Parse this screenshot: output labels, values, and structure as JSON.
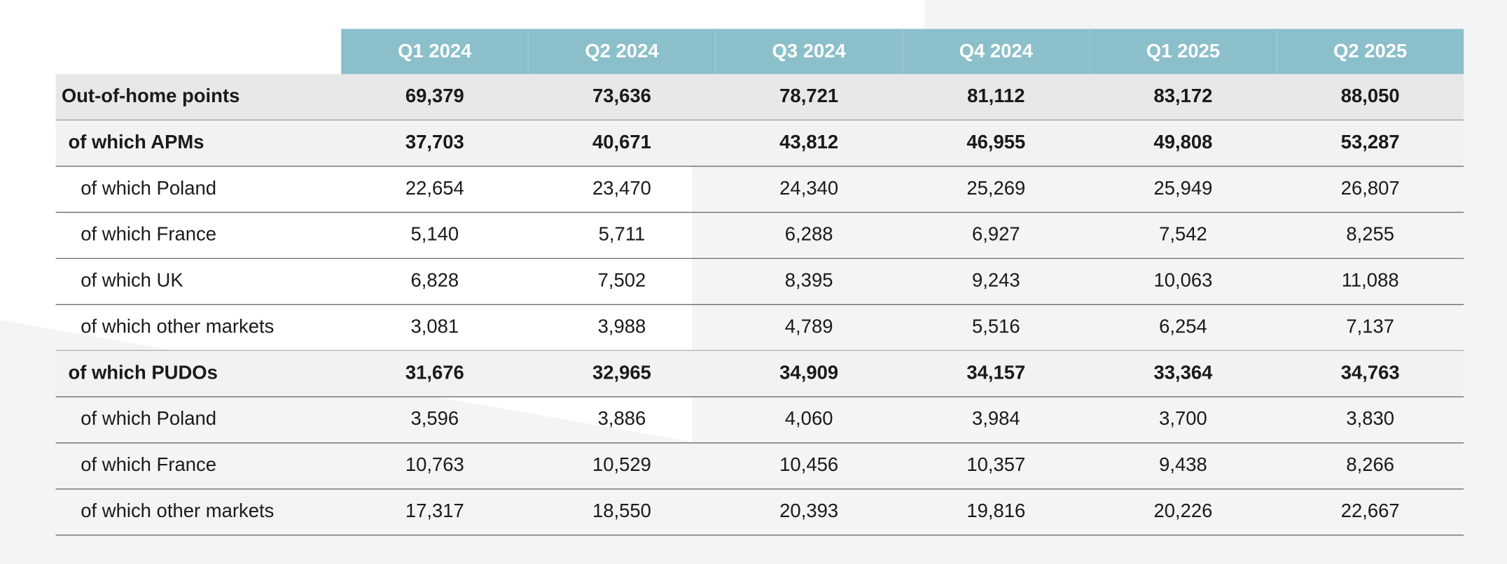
{
  "table": {
    "header": [
      "Q1 2024",
      "Q2 2024",
      "Q3 2024",
      "Q4 2024",
      "Q1 2025",
      "Q2 2025"
    ],
    "rows": [
      [
        "Out-of-home points",
        "69,379",
        "73,636",
        "78,721",
        "81,112",
        "83,172",
        "88,050"
      ],
      [
        "of which APMs",
        "37,703",
        "40,671",
        "43,812",
        "46,955",
        "49,808",
        "53,287"
      ],
      [
        "of which Poland",
        "22,654",
        "23,470",
        "24,340",
        "25,269",
        "25,949",
        "26,807"
      ],
      [
        "of which France",
        "5,140",
        "5,711",
        "6,288",
        "6,927",
        "7,542",
        "8,255"
      ],
      [
        "of which UK",
        "6,828",
        "7,502",
        "8,395",
        "9,243",
        "10,063",
        "11,088"
      ],
      [
        "of which other markets",
        "3,081",
        "3,988",
        "4,789",
        "5,516",
        "6,254",
        "7,137"
      ],
      [
        "of which PUDOs",
        "31,676",
        "32,965",
        "34,909",
        "34,157",
        "33,364",
        "34,763"
      ],
      [
        "of which Poland",
        "3,596",
        "3,886",
        "4,060",
        "3,984",
        "3,700",
        "3,830"
      ],
      [
        "of which France",
        "10,763",
        "10,529",
        "10,456",
        "10,357",
        "9,438",
        "8,266"
      ],
      [
        "of which other markets",
        "17,317",
        "18,550",
        "20,393",
        "19,816",
        "20,226",
        "22,667"
      ]
    ]
  }
}
